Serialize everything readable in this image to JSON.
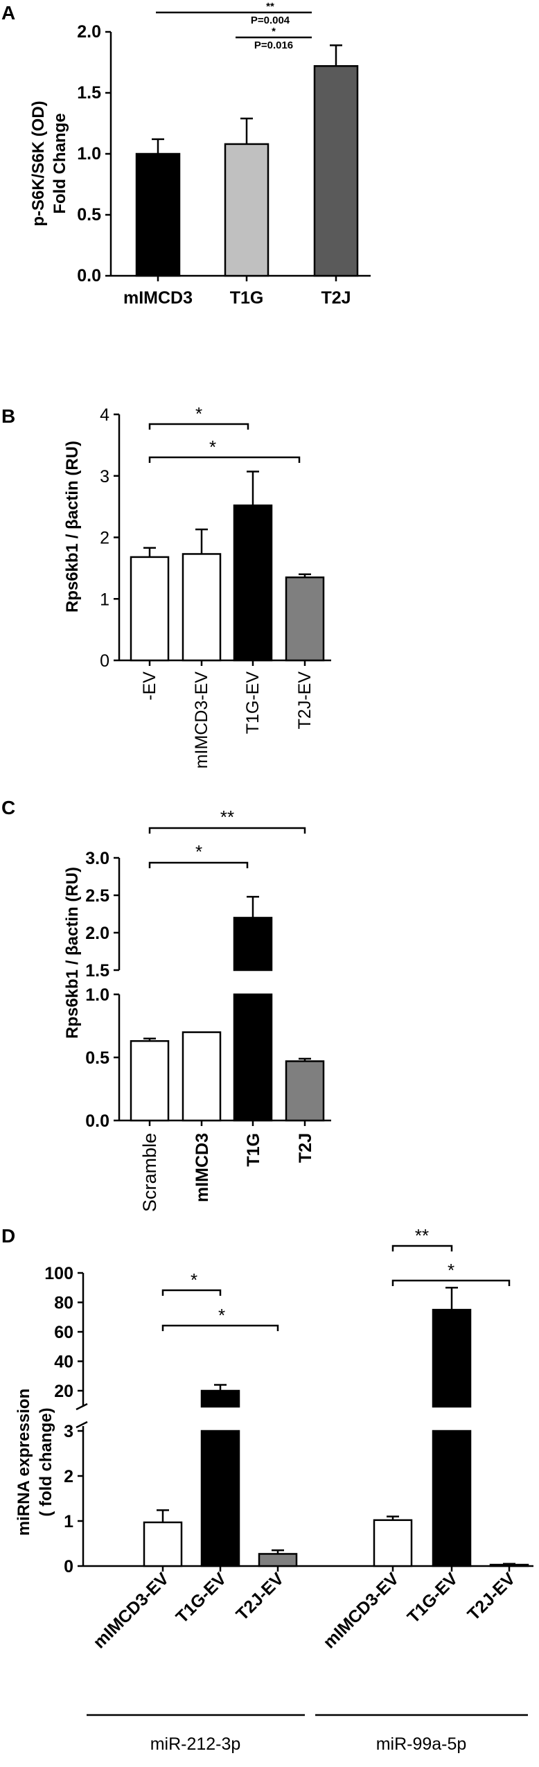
{
  "chart_data": [
    {
      "panel": "A",
      "type": "bar",
      "ylabel": [
        "p-S6K/S6K (OD)",
        "Fold Change"
      ],
      "categories": [
        "mIMCD3",
        "T1G",
        "T2J"
      ],
      "values": [
        1.0,
        1.08,
        1.72
      ],
      "errors": [
        0.12,
        0.21,
        0.17
      ],
      "colors": [
        "#000000",
        "#c0c0c0",
        "#5a5a5a"
      ],
      "ylim": [
        0,
        2.0
      ],
      "yticks": [
        "0.0",
        "0.5",
        "1.0",
        "1.5",
        "2.0"
      ],
      "ytick_values": [
        0,
        0.5,
        1.0,
        1.5,
        2.0
      ],
      "annotations": [
        {
          "stars": "**",
          "p": "P=0.004",
          "from": 0,
          "to": 2
        },
        {
          "stars": "*",
          "p": "P=0.016",
          "from": 1,
          "to": 2
        }
      ]
    },
    {
      "panel": "B",
      "type": "bar",
      "ylabel": "Rps6kb1 / βactin (RU)",
      "categories": [
        "-EV",
        "mIMCD3-EV",
        "T1G-EV",
        "T2J-EV"
      ],
      "values": [
        1.68,
        1.73,
        2.52,
        1.35
      ],
      "errors": [
        0.15,
        0.4,
        0.55,
        0.05
      ],
      "colors": [
        "#ffffff",
        "#ffffff",
        "#000000",
        "#7f7f7f"
      ],
      "ylim": [
        0,
        4
      ],
      "yticks": [
        "0",
        "1",
        "2",
        "3",
        "4"
      ],
      "ytick_values": [
        0,
        1,
        2,
        3,
        4
      ],
      "annotations": [
        {
          "stars": "*",
          "from": 0,
          "to": 2
        },
        {
          "stars": "*",
          "from": 0,
          "to": 3
        }
      ]
    },
    {
      "panel": "C",
      "type": "bar",
      "ylabel": "Rps6kb1 / βactin (RU)",
      "categories": [
        "Scramble",
        "mIMCD3",
        "T1G",
        "T2J"
      ],
      "values": [
        0.63,
        0.7,
        2.2,
        0.47
      ],
      "errors": [
        0.02,
        0,
        0.28,
        0.02
      ],
      "colors": [
        "#ffffff",
        "#ffffff",
        "#000000",
        "#7f7f7f"
      ],
      "ylim": [
        0,
        3.0
      ],
      "axis_break": [
        1.0,
        1.5
      ],
      "yticks_lower": [
        "0.0",
        "0.5",
        "1.0"
      ],
      "ytick_values_lower": [
        0,
        0.5,
        1.0
      ],
      "yticks_upper": [
        "1.5",
        "2.0",
        "2.5",
        "3.0"
      ],
      "ytick_values_upper": [
        1.5,
        2.0,
        2.5,
        3.0
      ],
      "annotations": [
        {
          "stars": "**",
          "from": 0,
          "to": 3
        },
        {
          "stars": "*",
          "from": 0,
          "to": 2
        }
      ]
    },
    {
      "panel": "D",
      "type": "bar",
      "ylabel": [
        "miRNA expression",
        "( fold change)"
      ],
      "categories": [
        "mIMCD3-EV",
        "T1G-EV",
        "T2J-EV",
        "mIMCD3-EV",
        "T1G-EV",
        "T2J-EV"
      ],
      "groups": [
        {
          "name": "miR-212-3p",
          "indices": [
            0,
            1,
            2
          ]
        },
        {
          "name": "miR-99a-5p",
          "indices": [
            3,
            4,
            5
          ]
        }
      ],
      "values": [
        0.97,
        10,
        0.27,
        1.02,
        75,
        0.03
      ],
      "errors": [
        0.27,
        4,
        0.08,
        0.08,
        15,
        0.02
      ],
      "colors": [
        "#ffffff",
        "#000000",
        "#7f7f7f",
        "#ffffff",
        "#000000",
        "#7f7f7f"
      ],
      "axis_break": [
        3,
        20
      ],
      "yticks_lower": [
        "0",
        "1",
        "2",
        "3"
      ],
      "ytick_values_lower": [
        0,
        1,
        2,
        3
      ],
      "yticks_upper": [
        "20",
        "40",
        "60",
        "80",
        "100"
      ],
      "ytick_values_upper": [
        20,
        40,
        60,
        80,
        100
      ],
      "annotations": [
        {
          "stars": "*",
          "from": 0,
          "to": 1
        },
        {
          "stars": "*",
          "from": 0,
          "to": 2
        },
        {
          "stars": "**",
          "from": 3,
          "to": 4
        },
        {
          "stars": "*",
          "from": 3,
          "to": 5
        }
      ]
    }
  ]
}
